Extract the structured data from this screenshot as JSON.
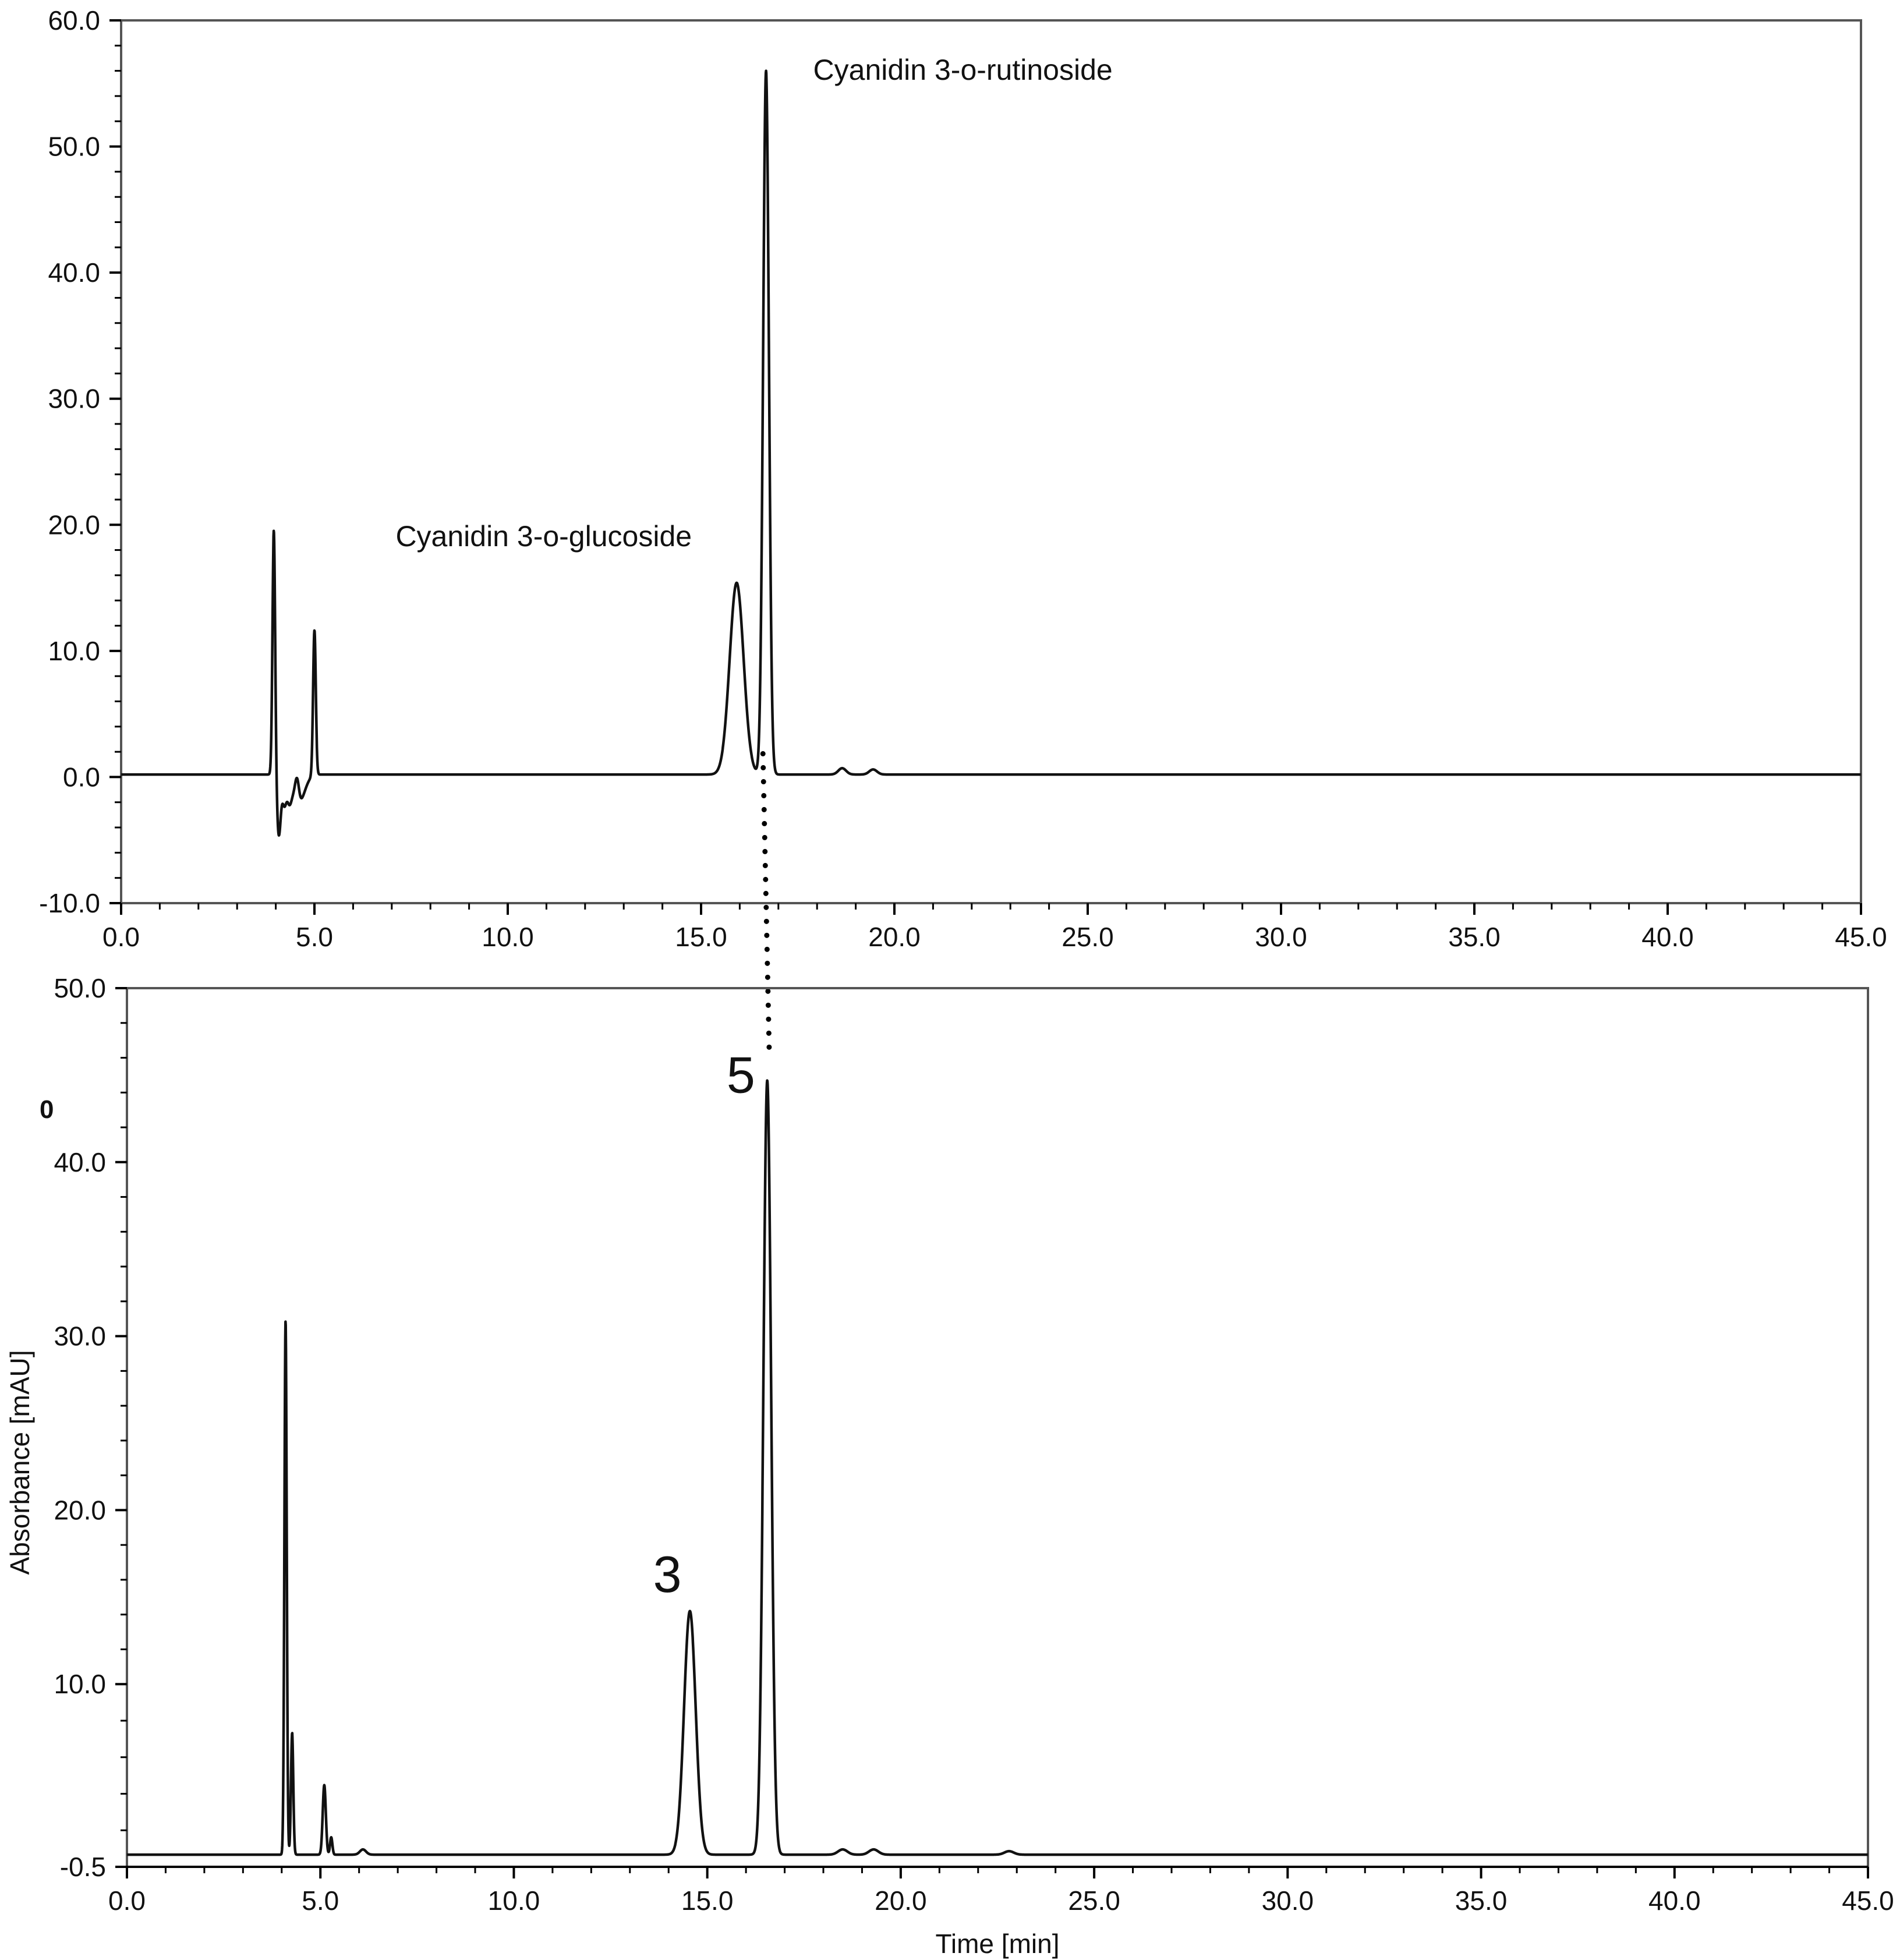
{
  "colors": {
    "trace": "#111111",
    "axis": "#000000",
    "frame": "#555555"
  },
  "chart_data": [
    {
      "type": "line",
      "title": "",
      "xlabel": "",
      "ylabel": "Absorbance [mAU]",
      "ylabel_visible": false,
      "xlim": [
        0,
        45
      ],
      "ylim": [
        -10,
        60
      ],
      "x_ticks": [
        0,
        5,
        10,
        15,
        20,
        25,
        30,
        35,
        40,
        45
      ],
      "y_ticks": [
        -10,
        0,
        10,
        20,
        30,
        40,
        50,
        60
      ],
      "x_tick_labels": [
        "0.0",
        "5.0",
        "10.0",
        "15.0",
        "20.0",
        "25.0",
        "30.0",
        "35.0",
        "40.0",
        "45.0"
      ],
      "y_tick_labels": [
        "-10.0",
        "0.0",
        "10.0",
        "20.0",
        "30.0",
        "40.0",
        "50.0",
        "60.0"
      ],
      "grid": false,
      "baseline": 0.2,
      "peaks": [
        {
          "x": 3.95,
          "height": 19.5,
          "width": 0.035
        },
        {
          "x": 4.08,
          "height": -4.8,
          "width": 0.05
        },
        {
          "x": 4.22,
          "height": -2.2,
          "width": 0.05
        },
        {
          "x": 4.35,
          "height": -1.8,
          "width": 0.06
        },
        {
          "x": 4.6,
          "height": -2.2,
          "width": 0.15
        },
        {
          "x": 4.55,
          "height": 1.8,
          "width": 0.05
        },
        {
          "x": 5.0,
          "height": 11.5,
          "width": 0.035
        },
        {
          "x": 15.92,
          "height": 15.2,
          "width": 0.18
        },
        {
          "x": 16.68,
          "height": 55.8,
          "width": 0.075
        },
        {
          "x": 18.65,
          "height": 0.5,
          "width": 0.1
        },
        {
          "x": 19.45,
          "height": 0.4,
          "width": 0.1
        }
      ],
      "annotations": [
        {
          "text": "Cyanidin 3-o-glucoside",
          "x": 7.1,
          "y": 18.3
        },
        {
          "text": "Cyanidin 3-o-rutinoside",
          "x": 17.9,
          "y": 55.3
        }
      ]
    },
    {
      "type": "line",
      "title": "",
      "xlabel": "Time [min]",
      "ylabel": "Absorbance [mAU]",
      "xlim": [
        0,
        45
      ],
      "ylim": [
        -0.5,
        50
      ],
      "x_ticks": [
        0,
        5,
        10,
        15,
        20,
        25,
        30,
        35,
        40,
        45
      ],
      "y_ticks": [
        -0.5,
        10,
        20,
        30,
        40,
        50
      ],
      "x_tick_labels": [
        "0.0",
        "5.0",
        "10.0",
        "15.0",
        "20.0",
        "25.0",
        "30.0",
        "35.0",
        "40.0",
        "45.0"
      ],
      "y_tick_labels": [
        "-0.5",
        "10.0",
        "20.0",
        "30.0",
        "40.0",
        "50.0"
      ],
      "grid": false,
      "baseline": 0.2,
      "peaks": [
        {
          "x": 4.1,
          "height": 30.7,
          "width": 0.03
        },
        {
          "x": 4.27,
          "height": 7.0,
          "width": 0.03
        },
        {
          "x": 5.1,
          "height": 4.0,
          "width": 0.04
        },
        {
          "x": 5.28,
          "height": 1.0,
          "width": 0.03
        },
        {
          "x": 6.1,
          "height": 0.3,
          "width": 0.08
        },
        {
          "x": 14.55,
          "height": 14.0,
          "width": 0.15
        },
        {
          "x": 16.55,
          "height": 44.5,
          "width": 0.1
        },
        {
          "x": 18.5,
          "height": 0.3,
          "width": 0.12
        },
        {
          "x": 19.3,
          "height": 0.3,
          "width": 0.12
        },
        {
          "x": 22.8,
          "height": 0.2,
          "width": 0.12
        }
      ],
      "annotations": [
        {
          "text": "3",
          "x": 13.6,
          "y": 15.3
        },
        {
          "text": "5",
          "x": 15.5,
          "y": 44.0
        }
      ],
      "side_label": "0"
    }
  ],
  "link": {
    "x": 16.6,
    "from_y": 0,
    "to_y": 46.5
  }
}
